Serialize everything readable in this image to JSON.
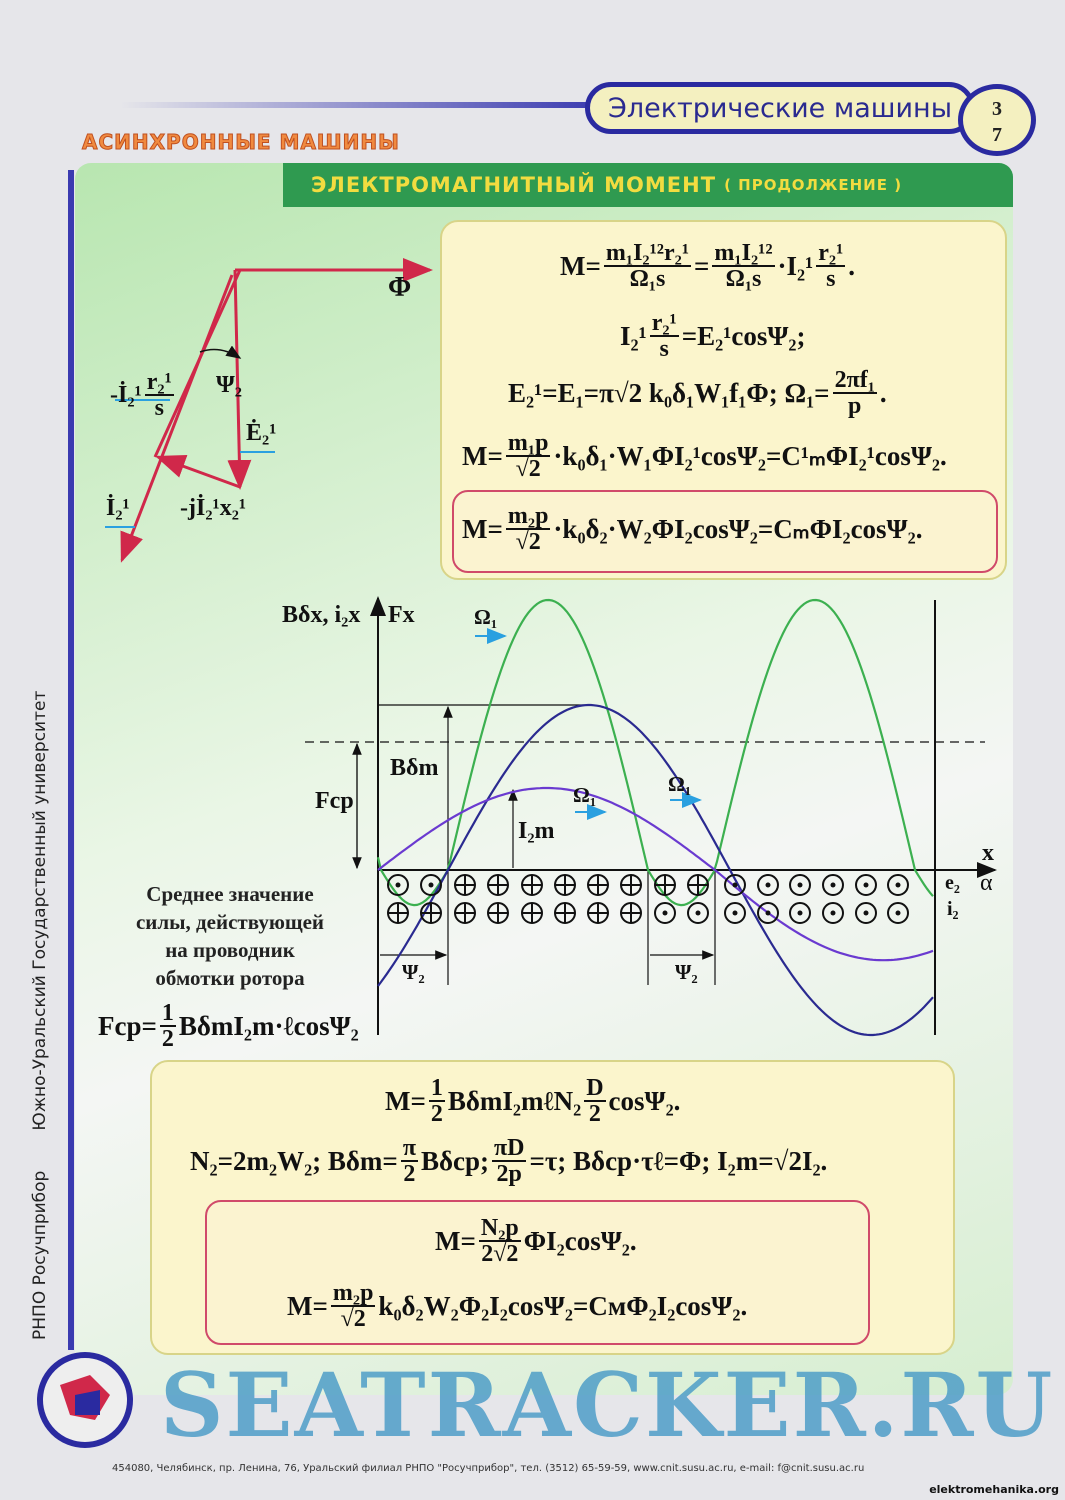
{
  "header": {
    "book_title": "Электрические машины",
    "page_number_top": "3",
    "page_number_bottom": "7",
    "section": "АСИНХРОННЫЕ МАШИНЫ",
    "topic": "ЭЛЕКТРОМАГНИТНЫЙ МОМЕНТ",
    "topic_suffix": "( ПРОДОЛЖЕНИЕ )"
  },
  "sidebar": {
    "publisher": "РНПО Росучприбор",
    "university": "Южно-Уральский Государственный университет"
  },
  "colors": {
    "green_bar": "#2f9a50",
    "title_yellow": "#f2dc40",
    "border_blue": "#2a2aa0",
    "red_box": "#d04a6a",
    "vector_red": "#d0284a",
    "curve_green": "#3cb050",
    "curve_navy": "#2a2a90",
    "curve_purple": "#6a3ad0"
  },
  "formulas_top": [
    [
      "M=",
      {
        "n": "m₁I₂¹²r₂¹",
        "d": "Ω₁s"
      },
      "=",
      {
        "n": "m₁I₂¹²",
        "d": "Ω₁s"
      },
      "·I₂¹",
      {
        "n": "r₂¹",
        "d": "s"
      },
      "."
    ],
    [
      "I₂¹",
      {
        "n": "r₂¹",
        "d": "s"
      },
      "=E₂¹cosΨ₂;"
    ],
    [
      "E₂¹=E₁=π√2 k₀δ₁W₁f₁Φ;   Ω₁=",
      {
        "n": "2πf₁",
        "d": "p"
      },
      "."
    ],
    [
      "M=",
      {
        "n": "m₁p",
        "d": "√2"
      },
      "·k₀δ₁·W₁ΦI₂¹cosΨ₂=C¹ₘΦI₂¹cosΨ₂."
    ],
    [
      "M=",
      {
        "n": "m₂p",
        "d": "√2"
      },
      "·k₀δ₂·W₂ΦI₂cosΨ₂=CₘΦI₂cosΨ₂."
    ]
  ],
  "formulas_bottom": [
    [
      "M=",
      {
        "n": "1",
        "d": "2"
      },
      "BδmI₂mℓN₂",
      {
        "n": "D",
        "d": "2"
      },
      "cosΨ₂."
    ],
    [
      "N₂=2m₂W₂; Bδm=",
      {
        "n": "π",
        "d": "2"
      },
      "Bδср; ",
      {
        "n": "πD",
        "d": "2p"
      },
      "=τ; Bδср·τℓ=Φ; I₂m=√2I₂."
    ],
    [
      "M=",
      {
        "n": "N₂p",
        "d": "2√2"
      },
      "ΦI₂cosΨ₂."
    ],
    [
      "M=",
      {
        "n": "m₂p",
        "d": "√2"
      },
      "k₀δ₂W₂Φ₂I₂cosΨ₂=CмΦ₂I₂cosΨ₂."
    ]
  ],
  "formula_fcp": [
    "Fср=",
    {
      "n": "1",
      "d": "2"
    },
    "BδmI₂m·ℓcosΨ₂"
  ],
  "vector_diagram": {
    "phi": "Φ",
    "minus_i2": "-İ₂¹",
    "r_over_s": {
      "n": "r₂¹",
      "d": "s"
    },
    "psi": "Ψ₂",
    "e2": "Ė₂¹",
    "i2": "İ₂¹",
    "jx": "-jİ₂¹x₂¹"
  },
  "graph": {
    "y_label": "Bδx, i₂x",
    "f_label": "Fx",
    "omega": "Ω₁",
    "b_max": "Bδm",
    "f_avg": "Fср",
    "i_max": "I₂m",
    "x_label": "x",
    "alpha_label": "α",
    "e2": "e₂",
    "i2": "i₂",
    "psi": "Ψ₂",
    "row_top": [
      "dot",
      "dot",
      "plus",
      "plus",
      "plus",
      "plus",
      "plus",
      "plus",
      "plus",
      "plus",
      "dot",
      "dot",
      "dot",
      "dot",
      "dot",
      "dot"
    ],
    "row_bottom": [
      "plus",
      "plus",
      "plus",
      "plus",
      "plus",
      "plus",
      "plus",
      "plus",
      "dot",
      "dot",
      "dot",
      "dot",
      "dot",
      "dot",
      "dot",
      "dot"
    ]
  },
  "description": [
    "Среднее значение",
    "силы, действующей",
    "на проводник",
    "обмотки ротора"
  ],
  "footer": {
    "address": "454080, Челябинск, пр. Ленина, 76, Уральский филиал РНПО \"Росучприбор\", тел. (3512) 65-59-59, www.cnit.susu.ac.ru, e-mail: f@cnit.susu.ac.ru",
    "watermark": "SEATRACKER.RU",
    "site": "elektromehanika.org"
  }
}
